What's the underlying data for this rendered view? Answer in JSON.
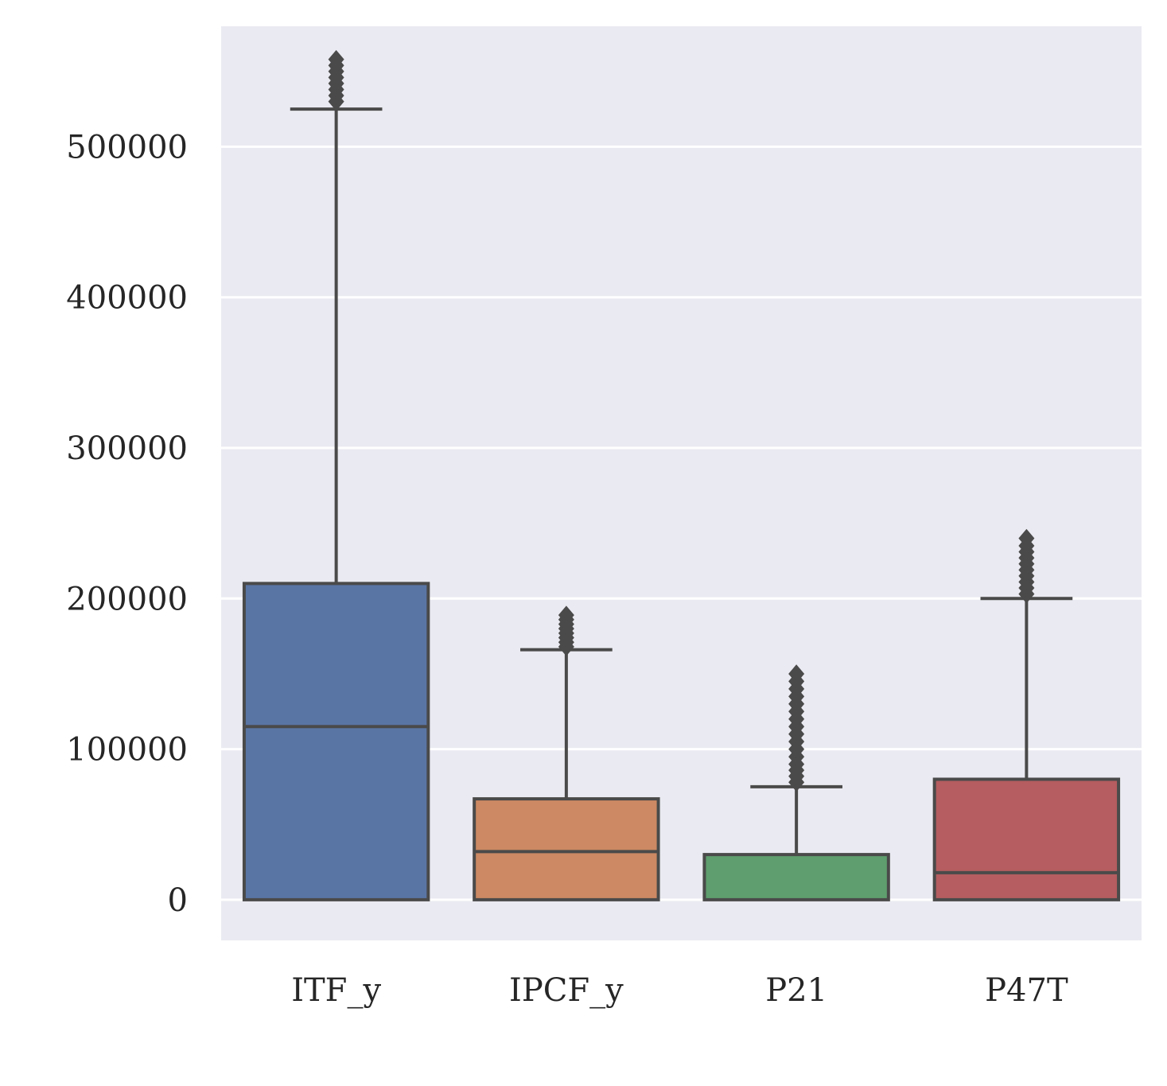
{
  "chart_data": {
    "type": "box",
    "categories": [
      "ITF_y",
      "IPCF_y",
      "P21",
      "P47T"
    ],
    "ylim": [
      -27000,
      580000
    ],
    "yticks": [
      0,
      100000,
      200000,
      300000,
      400000,
      500000
    ],
    "ytick_labels": [
      "0",
      "100000",
      "200000",
      "300000",
      "400000",
      "500000"
    ],
    "xlabel": "",
    "ylabel": "",
    "grid": true,
    "background": "#EAEAF2",
    "grid_color": "#FFFFFF",
    "line_color": "#4A4A4A",
    "series": [
      {
        "category": "ITF_y",
        "color": "#5975A4",
        "min": 0,
        "q1": 0,
        "median": 115000,
        "q3": 210000,
        "whisker_high": 525000,
        "outliers": [
          530000,
          534000,
          538000,
          542000,
          546000,
          550000,
          554000,
          558000
        ]
      },
      {
        "category": "IPCF_y",
        "color": "#CC8963",
        "min": 0,
        "q1": 0,
        "median": 32000,
        "q3": 67000,
        "whisker_high": 166000,
        "outliers": [
          168000,
          171000,
          174000,
          177000,
          180000,
          183000,
          186000,
          189000
        ]
      },
      {
        "category": "P21",
        "color": "#5F9E6E",
        "min": 0,
        "q1": 0,
        "median": 0,
        "q3": 30000,
        "whisker_high": 75000,
        "outliers": [
          78000,
          82000,
          86000,
          90000,
          95000,
          100000,
          105000,
          110000,
          115000,
          120000,
          125000,
          130000,
          135000,
          140000,
          145000,
          150000
        ]
      },
      {
        "category": "P47T",
        "color": "#B55D60",
        "min": 0,
        "q1": 0,
        "median": 18000,
        "q3": 80000,
        "whisker_high": 200000,
        "outliers": [
          203000,
          207000,
          211000,
          215000,
          219000,
          223000,
          227000,
          231000,
          235000,
          240000
        ]
      }
    ]
  }
}
